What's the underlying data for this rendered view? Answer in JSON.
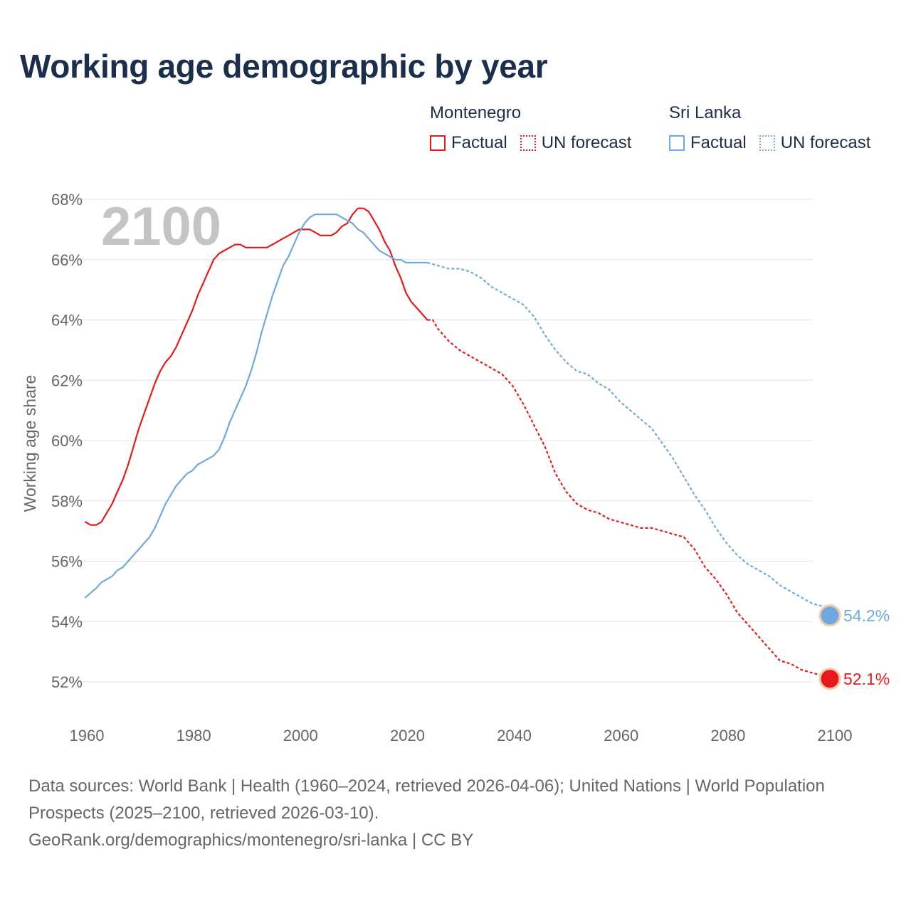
{
  "title": "Working age demographic by year",
  "legend": {
    "groups": [
      {
        "name": "Montenegro",
        "factual_label": "Factual",
        "forecast_label": "UN forecast",
        "color": "#e8191a"
      },
      {
        "name": "Sri Lanka",
        "factual_label": "Factual",
        "forecast_label": "UN forecast",
        "color": "#6fa8dc"
      }
    ]
  },
  "chart_data": {
    "type": "line",
    "title": "Working age demographic by year",
    "xlabel": "",
    "ylabel": "Working age share",
    "xlim": [
      1960,
      2100
    ],
    "ylim": [
      51,
      68.5
    ],
    "x_ticks": [
      1960,
      1980,
      2000,
      2020,
      2040,
      2060,
      2080,
      2100
    ],
    "x_tick_labels": [
      "1960",
      "1980",
      "2000",
      "2020",
      "2040",
      "2060",
      "2080",
      "2100"
    ],
    "y_ticks": [
      52,
      54,
      56,
      58,
      60,
      62,
      64,
      66,
      68
    ],
    "y_tick_labels": [
      "52%",
      "54%",
      "56%",
      "58%",
      "60%",
      "62%",
      "64%",
      "66%",
      "68%"
    ],
    "grid": true,
    "year_watermark": "2100",
    "series": [
      {
        "name": "Montenegro",
        "color": "#e8191a",
        "end_label": "52.1%",
        "factual": [
          [
            1960,
            57.3
          ],
          [
            1961,
            57.2
          ],
          [
            1962,
            57.2
          ],
          [
            1963,
            57.3
          ],
          [
            1964,
            57.6
          ],
          [
            1965,
            57.9
          ],
          [
            1966,
            58.3
          ],
          [
            1967,
            58.7
          ],
          [
            1968,
            59.2
          ],
          [
            1969,
            59.8
          ],
          [
            1970,
            60.4
          ],
          [
            1971,
            60.9
          ],
          [
            1972,
            61.4
          ],
          [
            1973,
            61.9
          ],
          [
            1974,
            62.3
          ],
          [
            1975,
            62.6
          ],
          [
            1976,
            62.8
          ],
          [
            1977,
            63.1
          ],
          [
            1978,
            63.5
          ],
          [
            1979,
            63.9
          ],
          [
            1980,
            64.3
          ],
          [
            1981,
            64.8
          ],
          [
            1982,
            65.2
          ],
          [
            1983,
            65.6
          ],
          [
            1984,
            66.0
          ],
          [
            1985,
            66.2
          ],
          [
            1986,
            66.3
          ],
          [
            1987,
            66.4
          ],
          [
            1988,
            66.5
          ],
          [
            1989,
            66.5
          ],
          [
            1990,
            66.4
          ],
          [
            1991,
            66.4
          ],
          [
            1992,
            66.4
          ],
          [
            1993,
            66.4
          ],
          [
            1994,
            66.4
          ],
          [
            1995,
            66.5
          ],
          [
            1996,
            66.6
          ],
          [
            1997,
            66.7
          ],
          [
            1998,
            66.8
          ],
          [
            1999,
            66.9
          ],
          [
            2000,
            67.0
          ],
          [
            2001,
            67.0
          ],
          [
            2002,
            67.0
          ],
          [
            2003,
            66.9
          ],
          [
            2004,
            66.8
          ],
          [
            2005,
            66.8
          ],
          [
            2006,
            66.8
          ],
          [
            2007,
            66.9
          ],
          [
            2008,
            67.1
          ],
          [
            2009,
            67.2
          ],
          [
            2010,
            67.5
          ],
          [
            2011,
            67.7
          ],
          [
            2012,
            67.7
          ],
          [
            2013,
            67.6
          ],
          [
            2014,
            67.3
          ],
          [
            2015,
            67.0
          ],
          [
            2016,
            66.6
          ],
          [
            2017,
            66.3
          ],
          [
            2018,
            65.8
          ],
          [
            2019,
            65.4
          ],
          [
            2020,
            64.9
          ],
          [
            2021,
            64.6
          ],
          [
            2022,
            64.4
          ],
          [
            2023,
            64.2
          ],
          [
            2024,
            64.0
          ]
        ],
        "forecast": [
          [
            2024,
            64.0
          ],
          [
            2025,
            64.0
          ],
          [
            2026,
            63.7
          ],
          [
            2028,
            63.3
          ],
          [
            2030,
            63.0
          ],
          [
            2032,
            62.8
          ],
          [
            2034,
            62.6
          ],
          [
            2036,
            62.4
          ],
          [
            2038,
            62.2
          ],
          [
            2040,
            61.8
          ],
          [
            2042,
            61.2
          ],
          [
            2044,
            60.5
          ],
          [
            2046,
            59.8
          ],
          [
            2048,
            58.9
          ],
          [
            2050,
            58.3
          ],
          [
            2052,
            57.9
          ],
          [
            2054,
            57.7
          ],
          [
            2056,
            57.6
          ],
          [
            2058,
            57.4
          ],
          [
            2060,
            57.3
          ],
          [
            2062,
            57.2
          ],
          [
            2064,
            57.1
          ],
          [
            2066,
            57.1
          ],
          [
            2068,
            57.0
          ],
          [
            2070,
            56.9
          ],
          [
            2072,
            56.8
          ],
          [
            2074,
            56.4
          ],
          [
            2076,
            55.8
          ],
          [
            2078,
            55.4
          ],
          [
            2080,
            54.9
          ],
          [
            2082,
            54.3
          ],
          [
            2084,
            53.9
          ],
          [
            2086,
            53.5
          ],
          [
            2088,
            53.1
          ],
          [
            2090,
            52.7
          ],
          [
            2092,
            52.6
          ],
          [
            2094,
            52.4
          ],
          [
            2096,
            52.3
          ],
          [
            2098,
            52.2
          ],
          [
            2100,
            52.1
          ]
        ]
      },
      {
        "name": "Sri Lanka",
        "color": "#6fa8dc",
        "end_label": "54.2%",
        "factual": [
          [
            1960,
            54.8
          ],
          [
            1962,
            55.1
          ],
          [
            1963,
            55.3
          ],
          [
            1965,
            55.5
          ],
          [
            1966,
            55.7
          ],
          [
            1967,
            55.8
          ],
          [
            1968,
            56.0
          ],
          [
            1970,
            56.4
          ],
          [
            1972,
            56.8
          ],
          [
            1973,
            57.1
          ],
          [
            1974,
            57.5
          ],
          [
            1975,
            57.9
          ],
          [
            1976,
            58.2
          ],
          [
            1977,
            58.5
          ],
          [
            1978,
            58.7
          ],
          [
            1979,
            58.9
          ],
          [
            1980,
            59.0
          ],
          [
            1981,
            59.2
          ],
          [
            1982,
            59.3
          ],
          [
            1983,
            59.4
          ],
          [
            1984,
            59.5
          ],
          [
            1985,
            59.7
          ],
          [
            1986,
            60.1
          ],
          [
            1987,
            60.6
          ],
          [
            1988,
            61.0
          ],
          [
            1989,
            61.4
          ],
          [
            1990,
            61.8
          ],
          [
            1991,
            62.3
          ],
          [
            1992,
            62.9
          ],
          [
            1993,
            63.6
          ],
          [
            1994,
            64.2
          ],
          [
            1995,
            64.8
          ],
          [
            1996,
            65.3
          ],
          [
            1997,
            65.8
          ],
          [
            1998,
            66.1
          ],
          [
            1999,
            66.5
          ],
          [
            2000,
            66.9
          ],
          [
            2001,
            67.2
          ],
          [
            2002,
            67.4
          ],
          [
            2003,
            67.5
          ],
          [
            2004,
            67.5
          ],
          [
            2005,
            67.5
          ],
          [
            2006,
            67.5
          ],
          [
            2007,
            67.5
          ],
          [
            2008,
            67.4
          ],
          [
            2009,
            67.3
          ],
          [
            2010,
            67.2
          ],
          [
            2011,
            67.0
          ],
          [
            2012,
            66.9
          ],
          [
            2013,
            66.7
          ],
          [
            2014,
            66.5
          ],
          [
            2015,
            66.3
          ],
          [
            2016,
            66.2
          ],
          [
            2017,
            66.1
          ],
          [
            2018,
            66.0
          ],
          [
            2019,
            66.0
          ],
          [
            2020,
            65.9
          ],
          [
            2021,
            65.9
          ],
          [
            2022,
            65.9
          ],
          [
            2023,
            65.9
          ],
          [
            2024,
            65.9
          ]
        ],
        "forecast": [
          [
            2024,
            65.9
          ],
          [
            2026,
            65.8
          ],
          [
            2028,
            65.7
          ],
          [
            2030,
            65.7
          ],
          [
            2032,
            65.6
          ],
          [
            2034,
            65.4
          ],
          [
            2036,
            65.1
          ],
          [
            2038,
            64.9
          ],
          [
            2040,
            64.7
          ],
          [
            2042,
            64.5
          ],
          [
            2044,
            64.1
          ],
          [
            2046,
            63.5
          ],
          [
            2048,
            63.0
          ],
          [
            2050,
            62.6
          ],
          [
            2052,
            62.3
          ],
          [
            2054,
            62.2
          ],
          [
            2056,
            61.9
          ],
          [
            2058,
            61.7
          ],
          [
            2060,
            61.3
          ],
          [
            2062,
            61.0
          ],
          [
            2064,
            60.7
          ],
          [
            2066,
            60.4
          ],
          [
            2068,
            59.9
          ],
          [
            2070,
            59.4
          ],
          [
            2072,
            58.8
          ],
          [
            2074,
            58.2
          ],
          [
            2076,
            57.7
          ],
          [
            2078,
            57.1
          ],
          [
            2080,
            56.6
          ],
          [
            2082,
            56.2
          ],
          [
            2084,
            55.9
          ],
          [
            2086,
            55.7
          ],
          [
            2088,
            55.5
          ],
          [
            2090,
            55.2
          ],
          [
            2092,
            55.0
          ],
          [
            2094,
            54.8
          ],
          [
            2096,
            54.6
          ],
          [
            2098,
            54.5
          ],
          [
            2100,
            54.2
          ]
        ]
      }
    ]
  },
  "footer": {
    "sources": "Data sources: World Bank | Health (1960–2024, retrieved 2026-04-06); United Nations | World Population Prospects (2025–2100, retrieved 2026-03-10).",
    "attribution": "GeoRank.org/demographics/montenegro/sri-lanka | CC BY"
  }
}
